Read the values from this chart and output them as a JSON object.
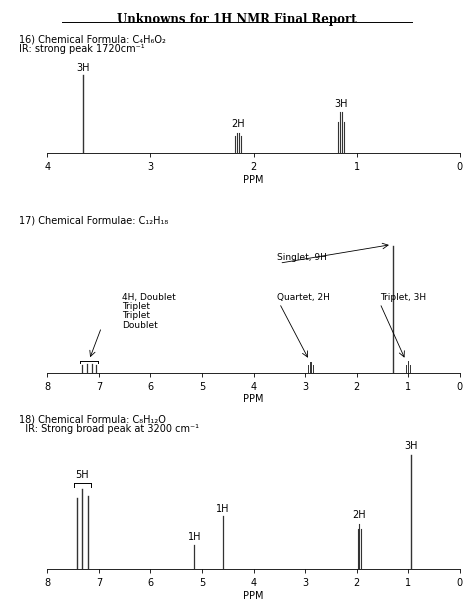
{
  "title": "Unknowns for 1H NMR Final Report",
  "sp1_label": "16) Chemical Formula: C₄H₆O₂",
  "sp1_ir": "IR: strong peak 1720cm⁻¹",
  "sp2_label": "17) Chemical Formulae: C₁₂H₁₈",
  "sp3_label": "18) Chemical Formula: C₈H₁₂O",
  "sp3_ir": "  IR: Strong broad peak at 3200 cm⁻¹",
  "peak_color": "#333333",
  "bg_color": "#ffffff",
  "fontsize_title": 8.5,
  "fontsize_label": 7,
  "fontsize_peak": 7,
  "fontsize_axis": 7
}
